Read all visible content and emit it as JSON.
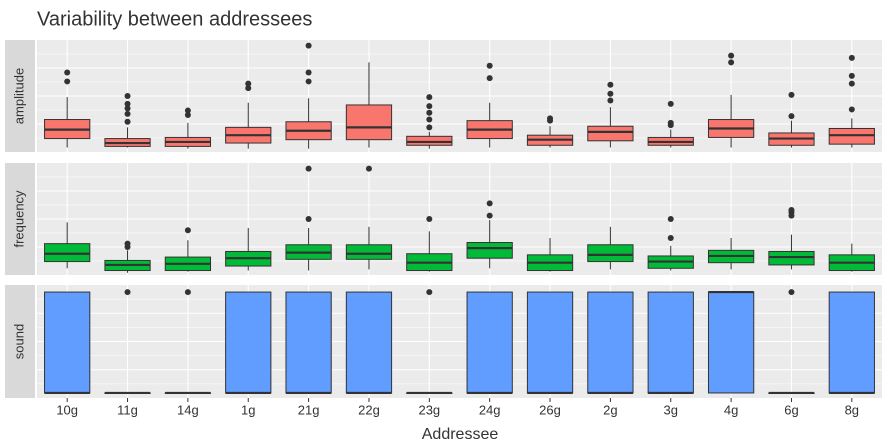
{
  "chart_data": [
    {
      "type": "box",
      "title": "Variability between addressees",
      "facet": "amplitude",
      "color": "#f8766d",
      "ylim": [
        0,
        100
      ],
      "boxes": [
        {
          "min": 4,
          "q1": 12,
          "median": 20,
          "q3": 29,
          "max": 49,
          "outliers": [
            63,
            71
          ]
        },
        {
          "min": 4,
          "q1": 5,
          "median": 8,
          "q3": 12,
          "max": 22,
          "outliers": [
            27,
            34,
            39,
            43,
            50
          ]
        },
        {
          "min": 3,
          "q1": 5,
          "median": 9,
          "q3": 13,
          "max": 26,
          "outliers": [
            33,
            37
          ]
        },
        {
          "min": 3,
          "q1": 8,
          "median": 15,
          "q3": 22,
          "max": 44,
          "outliers": [
            57,
            61
          ]
        },
        {
          "min": 3,
          "q1": 11,
          "median": 19,
          "q3": 27,
          "max": 48,
          "outliers": [
            63,
            71,
            95
          ]
        },
        {
          "min": 4,
          "q1": 11,
          "median": 22,
          "q3": 42,
          "max": 80,
          "outliers": []
        },
        {
          "min": 3,
          "q1": 6,
          "median": 9,
          "q3": 14,
          "max": 18,
          "outliers": [
            22,
            29,
            35,
            41,
            49
          ]
        },
        {
          "min": 4,
          "q1": 12,
          "median": 20,
          "q3": 28,
          "max": 44,
          "outliers": [
            66,
            77
          ]
        },
        {
          "min": 4,
          "q1": 6,
          "median": 11,
          "q3": 15,
          "max": 23,
          "outliers": [
            28,
            30
          ]
        },
        {
          "min": 4,
          "q1": 10,
          "median": 18,
          "q3": 23,
          "max": 40,
          "outliers": [
            46,
            52,
            60
          ]
        },
        {
          "min": 4,
          "q1": 6,
          "median": 9,
          "q3": 13,
          "max": 20,
          "outliers": [
            24,
            26,
            43
          ]
        },
        {
          "min": 4,
          "q1": 13,
          "median": 21,
          "q3": 29,
          "max": 51,
          "outliers": [
            80,
            86
          ]
        },
        {
          "min": 4,
          "q1": 6,
          "median": 12,
          "q3": 17,
          "max": 28,
          "outliers": [
            32,
            51
          ]
        },
        {
          "min": 4,
          "q1": 7,
          "median": 15,
          "q3": 21,
          "max": 30,
          "outliers": [
            38,
            61,
            68,
            84
          ]
        }
      ]
    },
    {
      "type": "box",
      "facet": "frequency",
      "color": "#00ba38",
      "ylim": [
        0,
        100
      ],
      "boxes": [
        {
          "min": 6,
          "q1": 12,
          "median": 19,
          "q3": 28,
          "max": 47,
          "outliers": []
        },
        {
          "min": 2,
          "q1": 4,
          "median": 9,
          "q3": 13,
          "max": 22,
          "outliers": [
            25,
            28
          ]
        },
        {
          "min": 3,
          "q1": 4,
          "median": 10,
          "q3": 16,
          "max": 31,
          "outliers": [
            40
          ]
        },
        {
          "min": 4,
          "q1": 8,
          "median": 15,
          "q3": 21,
          "max": 42,
          "outliers": []
        },
        {
          "min": 4,
          "q1": 14,
          "median": 20,
          "q3": 27,
          "max": 42,
          "outliers": [
            50,
            95
          ]
        },
        {
          "min": 5,
          "q1": 14,
          "median": 19,
          "q3": 27,
          "max": 43,
          "outliers": [
            95
          ]
        },
        {
          "min": 3,
          "q1": 4,
          "median": 11,
          "q3": 19,
          "max": 39,
          "outliers": [
            50
          ]
        },
        {
          "min": 6,
          "q1": 15,
          "median": 24,
          "q3": 29,
          "max": 49,
          "outliers": [
            53,
            64
          ]
        },
        {
          "min": 3,
          "q1": 4,
          "median": 11,
          "q3": 18,
          "max": 33,
          "outliers": []
        },
        {
          "min": 5,
          "q1": 12,
          "median": 18,
          "q3": 27,
          "max": 43,
          "outliers": []
        },
        {
          "min": 4,
          "q1": 6,
          "median": 12,
          "q3": 17,
          "max": 26,
          "outliers": [
            33,
            50
          ]
        },
        {
          "min": 5,
          "q1": 11,
          "median": 17,
          "q3": 22,
          "max": 33,
          "outliers": []
        },
        {
          "min": 5,
          "q1": 9,
          "median": 16,
          "q3": 21,
          "max": 36,
          "outliers": [
            53,
            56,
            58
          ]
        },
        {
          "min": 3,
          "q1": 4,
          "median": 11,
          "q3": 18,
          "max": 28,
          "outliers": []
        }
      ]
    },
    {
      "type": "box",
      "facet": "sound",
      "color": "#619cff",
      "ylim": [
        -0.05,
        1.07
      ],
      "x_label": "Addressee",
      "categories": [
        "10g",
        "11g",
        "14g",
        "1g",
        "21g",
        "22g",
        "23g",
        "24g",
        "26g",
        "2g",
        "3g",
        "4g",
        "6g",
        "8g"
      ],
      "boxes": [
        {
          "min": 0,
          "q1": 0,
          "median": 0,
          "q3": 1,
          "max": 1,
          "outliers": []
        },
        {
          "min": 0,
          "q1": 0,
          "median": 0,
          "q3": 0,
          "max": 0,
          "outliers": [
            1
          ]
        },
        {
          "min": 0,
          "q1": 0,
          "median": 0,
          "q3": 0,
          "max": 0,
          "outliers": [
            1
          ]
        },
        {
          "min": 0,
          "q1": 0,
          "median": 0,
          "q3": 1,
          "max": 1,
          "outliers": []
        },
        {
          "min": 0,
          "q1": 0,
          "median": 0,
          "q3": 1,
          "max": 1,
          "outliers": []
        },
        {
          "min": 0,
          "q1": 0,
          "median": 0,
          "q3": 1,
          "max": 1,
          "outliers": []
        },
        {
          "min": 0,
          "q1": 0,
          "median": 0,
          "q3": 0,
          "max": 0,
          "outliers": [
            1
          ]
        },
        {
          "min": 0,
          "q1": 0,
          "median": 0,
          "q3": 1,
          "max": 1,
          "outliers": []
        },
        {
          "min": 0,
          "q1": 0,
          "median": 0,
          "q3": 1,
          "max": 1,
          "outliers": []
        },
        {
          "min": 0,
          "q1": 0,
          "median": 0,
          "q3": 1,
          "max": 1,
          "outliers": []
        },
        {
          "min": 0,
          "q1": 0,
          "median": 0,
          "q3": 1,
          "max": 1,
          "outliers": []
        },
        {
          "min": 0,
          "q1": 0,
          "median": 1,
          "q3": 1,
          "max": 1,
          "outliers": []
        },
        {
          "min": 0,
          "q1": 0,
          "median": 0,
          "q3": 0,
          "max": 0,
          "outliers": [
            1
          ]
        },
        {
          "min": 0,
          "q1": 0,
          "median": 0,
          "q3": 1,
          "max": 1,
          "outliers": []
        }
      ]
    }
  ]
}
